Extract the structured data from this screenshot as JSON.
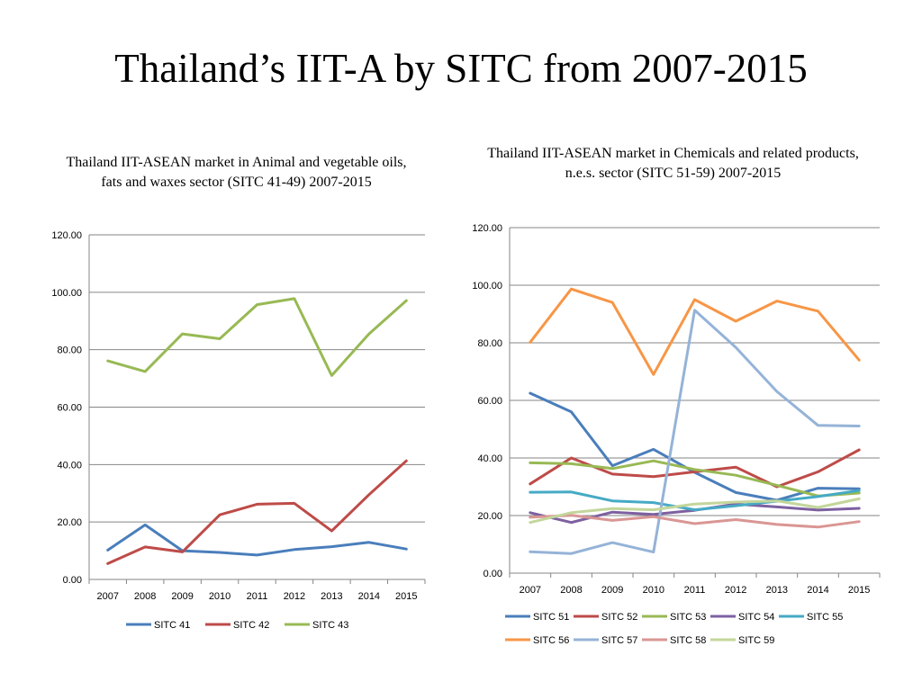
{
  "slide": {
    "title": "Thailand’s IIT-A by SITC from 2007-2015"
  },
  "chart_data": [
    {
      "type": "line",
      "title": "Thailand IIT-ASEAN market in Animal and vegetable oils, fats and waxes sector (SITC 41-49) 2007-2015",
      "x": [
        "2007",
        "2008",
        "2009",
        "2010",
        "2011",
        "2012",
        "2013",
        "2014",
        "2015"
      ],
      "y_ticks": [
        "0.00",
        "20.00",
        "40.00",
        "60.00",
        "80.00",
        "100.00",
        "120.00"
      ],
      "ylim": [
        0,
        120
      ],
      "grid": true,
      "legend_position": "bottom",
      "series": [
        {
          "name": "SITC 41",
          "color": "#4a7ebb",
          "values": [
            10.2,
            19.0,
            10.0,
            9.4,
            8.5,
            10.4,
            11.4,
            12.9,
            10.6
          ]
        },
        {
          "name": "SITC 42",
          "color": "#be4b48",
          "values": [
            5.5,
            11.3,
            9.6,
            22.5,
            26.2,
            26.5,
            16.9,
            29.5,
            41.3
          ]
        },
        {
          "name": "SITC 43",
          "color": "#98b954",
          "values": [
            76.1,
            72.4,
            85.5,
            83.8,
            95.7,
            97.8,
            71.0,
            85.5,
            97.1
          ]
        }
      ]
    },
    {
      "type": "line",
      "title": "Thailand IIT-ASEAN market in Chemicals and related products, n.e.s. sector (SITC 51-59) 2007-2015",
      "x": [
        "2007",
        "2008",
        "2009",
        "2010",
        "2011",
        "2012",
        "2013",
        "2014",
        "2015"
      ],
      "y_ticks": [
        "0.00",
        "20.00",
        "40.00",
        "60.00",
        "80.00",
        "100.00",
        "120.00"
      ],
      "ylim": [
        0,
        120
      ],
      "grid": true,
      "legend_position": "bottom",
      "series": [
        {
          "name": "SITC 51",
          "color": "#4a7ebb",
          "values": [
            62.5,
            56.0,
            37.3,
            43.0,
            35.0,
            28.0,
            25.3,
            29.5,
            29.3
          ]
        },
        {
          "name": "SITC 52",
          "color": "#be4b48",
          "values": [
            31.0,
            40.0,
            34.4,
            33.5,
            35.2,
            36.8,
            30.0,
            35.2,
            42.8
          ]
        },
        {
          "name": "SITC 53",
          "color": "#98b954",
          "values": [
            38.3,
            38.0,
            36.3,
            39.0,
            36.0,
            34.0,
            30.5,
            26.8,
            27.8
          ]
        },
        {
          "name": "SITC 54",
          "color": "#7d60a0",
          "values": [
            21.0,
            17.6,
            21.2,
            20.4,
            21.8,
            24.0,
            23.0,
            21.9,
            22.5
          ]
        },
        {
          "name": "SITC 55",
          "color": "#46aac5",
          "values": [
            28.1,
            28.2,
            25.1,
            24.5,
            22.0,
            23.4,
            25.0,
            26.6,
            28.7
          ]
        },
        {
          "name": "SITC 56",
          "color": "#f79646",
          "values": [
            80.2,
            98.7,
            94.0,
            69.0,
            95.0,
            87.5,
            94.5,
            91.0,
            74.0
          ]
        },
        {
          "name": "SITC 57",
          "color": "#95b3d7",
          "values": [
            7.4,
            6.8,
            10.6,
            7.3,
            91.3,
            78.4,
            63.1,
            51.3,
            51.1
          ]
        },
        {
          "name": "SITC 58",
          "color": "#d99694",
          "values": [
            19.4,
            20.1,
            18.3,
            19.6,
            17.2,
            18.6,
            16.9,
            16.0,
            17.9
          ]
        },
        {
          "name": "SITC 59",
          "color": "#c3d69b",
          "values": [
            17.6,
            21.0,
            22.4,
            22.0,
            24.0,
            24.7,
            25.1,
            22.8,
            25.8
          ]
        }
      ]
    }
  ]
}
